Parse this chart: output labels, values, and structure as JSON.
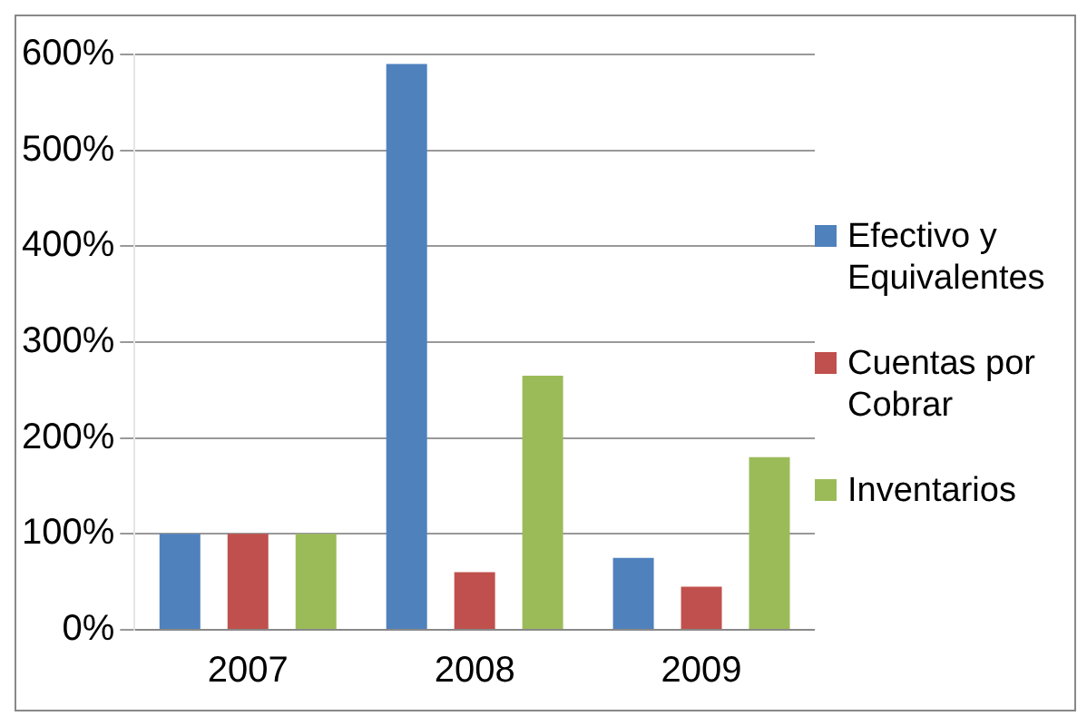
{
  "chart_data": {
    "type": "bar",
    "categories": [
      "2007",
      "2008",
      "2009"
    ],
    "series": [
      {
        "name": "Efectivo y Equivalentes",
        "color": "#4f81bd",
        "values": [
          100,
          590,
          75
        ]
      },
      {
        "name": "Cuentas por Cobrar",
        "color": "#c0504d",
        "values": [
          100,
          60,
          45
        ]
      },
      {
        "name": "Inventarios",
        "color": "#9bbb59",
        "values": [
          100,
          265,
          180
        ]
      }
    ],
    "ylim": [
      0,
      600
    ],
    "yticks": [
      {
        "value": 0,
        "label": "0%"
      },
      {
        "value": 100,
        "label": "100%"
      },
      {
        "value": 200,
        "label": "200%"
      },
      {
        "value": 300,
        "label": "300%"
      },
      {
        "value": 400,
        "label": "400%"
      },
      {
        "value": 500,
        "label": "500%"
      },
      {
        "value": 600,
        "label": "600%"
      }
    ],
    "grid": "y",
    "legend": "right"
  }
}
